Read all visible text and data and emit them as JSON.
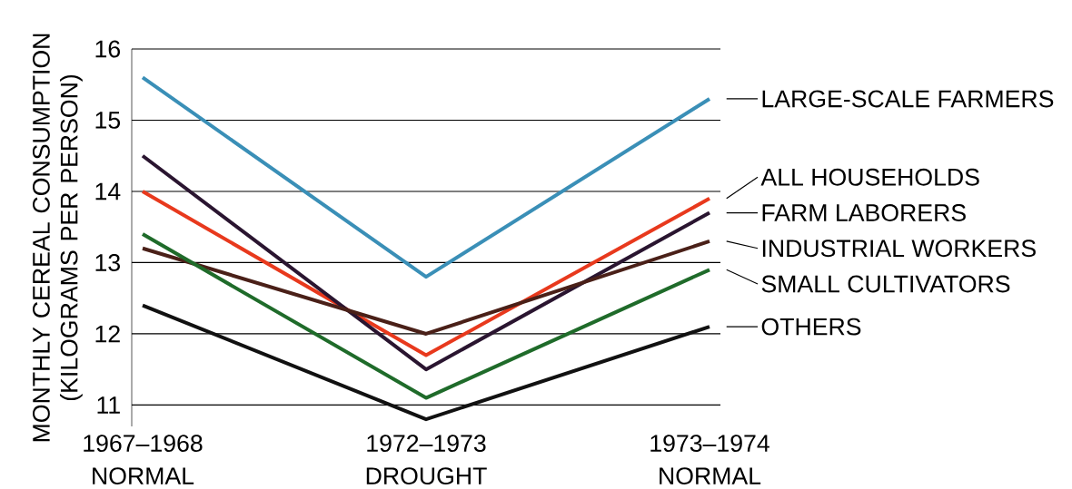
{
  "chart_data": {
    "type": "line",
    "ylabel": "MONTHLY CEREAL CONSUMPTION (KILOGRAMS PER PERSON)",
    "categories": [
      "1967–1968 NORMAL",
      "1972–1973 DROUGHT",
      "1973–1974 NORMAL"
    ],
    "ylim": [
      10.7,
      16
    ],
    "yticks": [
      11,
      12,
      13,
      14,
      15,
      16
    ],
    "grid": "y",
    "marker": "none",
    "line_style": "solid",
    "series": [
      {
        "name": "LARGE-SCALE FARMERS",
        "color": "#3a8fb7",
        "values": [
          15.6,
          12.8,
          15.3
        ]
      },
      {
        "name": "ALL HOUSEHOLDS",
        "color": "#e8391d",
        "values": [
          14.0,
          11.7,
          13.9
        ]
      },
      {
        "name": "FARM LABORERS",
        "color": "#2a1530",
        "values": [
          14.5,
          11.5,
          13.7
        ]
      },
      {
        "name": "INDUSTRIAL WORKERS",
        "color": "#4a2018",
        "values": [
          13.2,
          12.0,
          13.3
        ]
      },
      {
        "name": "SMALL CULTIVATORS",
        "color": "#1f6b2a",
        "values": [
          13.4,
          11.1,
          12.9
        ]
      },
      {
        "name": "OTHERS",
        "color": "#111111",
        "values": [
          12.4,
          10.8,
          12.1
        ]
      }
    ]
  }
}
